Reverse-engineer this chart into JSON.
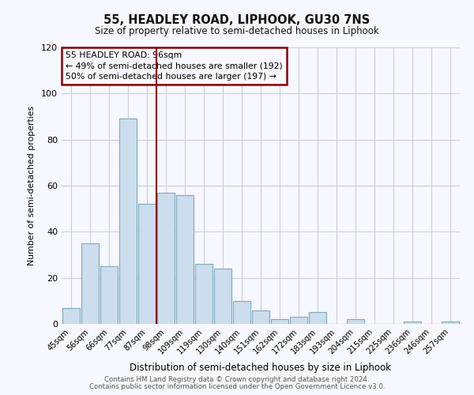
{
  "title": "55, HEADLEY ROAD, LIPHOOK, GU30 7NS",
  "subtitle": "Size of property relative to semi-detached houses in Liphook",
  "xlabel": "Distribution of semi-detached houses by size in Liphook",
  "ylabel": "Number of semi-detached properties",
  "categories": [
    "45sqm",
    "56sqm",
    "66sqm",
    "77sqm",
    "87sqm",
    "98sqm",
    "109sqm",
    "119sqm",
    "130sqm",
    "140sqm",
    "151sqm",
    "162sqm",
    "172sqm",
    "183sqm",
    "193sqm",
    "204sqm",
    "215sqm",
    "225sqm",
    "236sqm",
    "246sqm",
    "257sqm"
  ],
  "values": [
    7,
    35,
    25,
    89,
    52,
    57,
    56,
    26,
    24,
    10,
    6,
    2,
    3,
    5,
    0,
    2,
    0,
    0,
    1,
    0,
    1
  ],
  "bar_color": "#ccdded",
  "bar_edge_color": "#7aaabb",
  "marker_bin_index": 4,
  "marker_line_color": "#880000",
  "annotation_text1": "55 HEADLEY ROAD: 96sqm",
  "annotation_text2": "← 49% of semi-detached houses are smaller (192)",
  "annotation_text3": "50% of semi-detached houses are larger (197) →",
  "annotation_box_edge_color": "#880000",
  "ylim": [
    0,
    120
  ],
  "yticks": [
    0,
    20,
    40,
    60,
    80,
    100,
    120
  ],
  "footer1": "Contains HM Land Registry data © Crown copyright and database right 2024.",
  "footer2": "Contains public sector information licensed under the Open Government Licence v3.0.",
  "background_color": "#f7f7ff",
  "grid_color": "#ccccdd"
}
